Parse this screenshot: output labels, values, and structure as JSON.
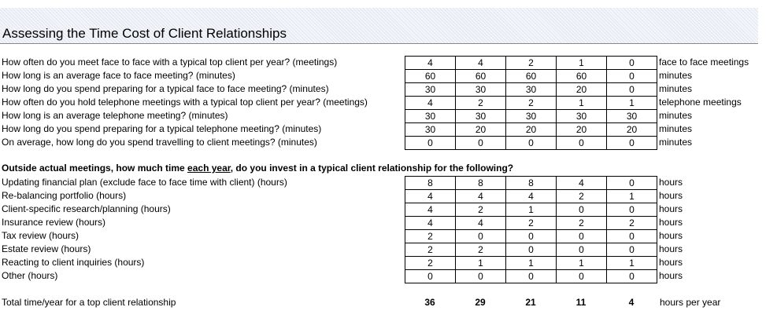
{
  "title": "Assessing the Time Cost of Client Relationships",
  "meetings": [
    {
      "label": "How often do you meet face to face with a typical top client per year? (meetings)",
      "values": [
        4,
        4,
        2,
        1,
        0
      ],
      "unit": "face to face meetings"
    },
    {
      "label": "How long is an average face to face meeting? (minutes)",
      "values": [
        60,
        60,
        60,
        60,
        0
      ],
      "unit": "minutes"
    },
    {
      "label": "How long do you spend preparing for a typical face to face meeting? (minutes)",
      "values": [
        30,
        30,
        30,
        20,
        0
      ],
      "unit": "minutes"
    },
    {
      "label": "How often do you hold telephone meetings with a typical top client per year? (meetings)",
      "values": [
        4,
        2,
        2,
        1,
        1
      ],
      "unit": "telephone meetings"
    },
    {
      "label": "How long is an average telephone meeting? (minutes)",
      "values": [
        30,
        30,
        30,
        30,
        30
      ],
      "unit": "minutes"
    },
    {
      "label": "How long do you spend preparing for a typical telephone meeting? (minutes)",
      "values": [
        30,
        20,
        20,
        20,
        20
      ],
      "unit": "minutes"
    },
    {
      "label": "On average, how long do you spend travelling to client meetings? (minutes)",
      "values": [
        0,
        0,
        0,
        0,
        0
      ],
      "unit": "minutes"
    }
  ],
  "section_heading": [
    "Outside actual meetings, how much time ",
    "each year",
    ", do you invest in a typical client relationship for the following?"
  ],
  "activities": [
    {
      "label": "Updating financial plan (exclude face to face time with client) (hours)",
      "values": [
        8,
        8,
        8,
        4,
        0
      ],
      "unit": "hours"
    },
    {
      "label": "Re-balancing portfolio (hours)",
      "values": [
        4,
        4,
        4,
        2,
        1
      ],
      "unit": "hours"
    },
    {
      "label": "Client-specific research/planning (hours)",
      "values": [
        4,
        2,
        1,
        0,
        0
      ],
      "unit": "hours"
    },
    {
      "label": "Insurance review (hours)",
      "values": [
        4,
        4,
        2,
        2,
        2
      ],
      "unit": "hours"
    },
    {
      "label": "Tax review (hours)",
      "values": [
        2,
        0,
        0,
        0,
        0
      ],
      "unit": "hours"
    },
    {
      "label": "Estate review (hours)",
      "values": [
        2,
        2,
        0,
        0,
        0
      ],
      "unit": "hours"
    },
    {
      "label": "Reacting to client inquiries (hours)",
      "values": [
        2,
        1,
        1,
        1,
        1
      ],
      "unit": "hours"
    },
    {
      "label": "Other (hours)",
      "values": [
        0,
        0,
        0,
        0,
        0
      ],
      "unit": "hours"
    }
  ],
  "total": {
    "label": "Total time/year for a top client relationship",
    "values": [
      36,
      29,
      21,
      11,
      4
    ],
    "unit": "hours per year"
  }
}
